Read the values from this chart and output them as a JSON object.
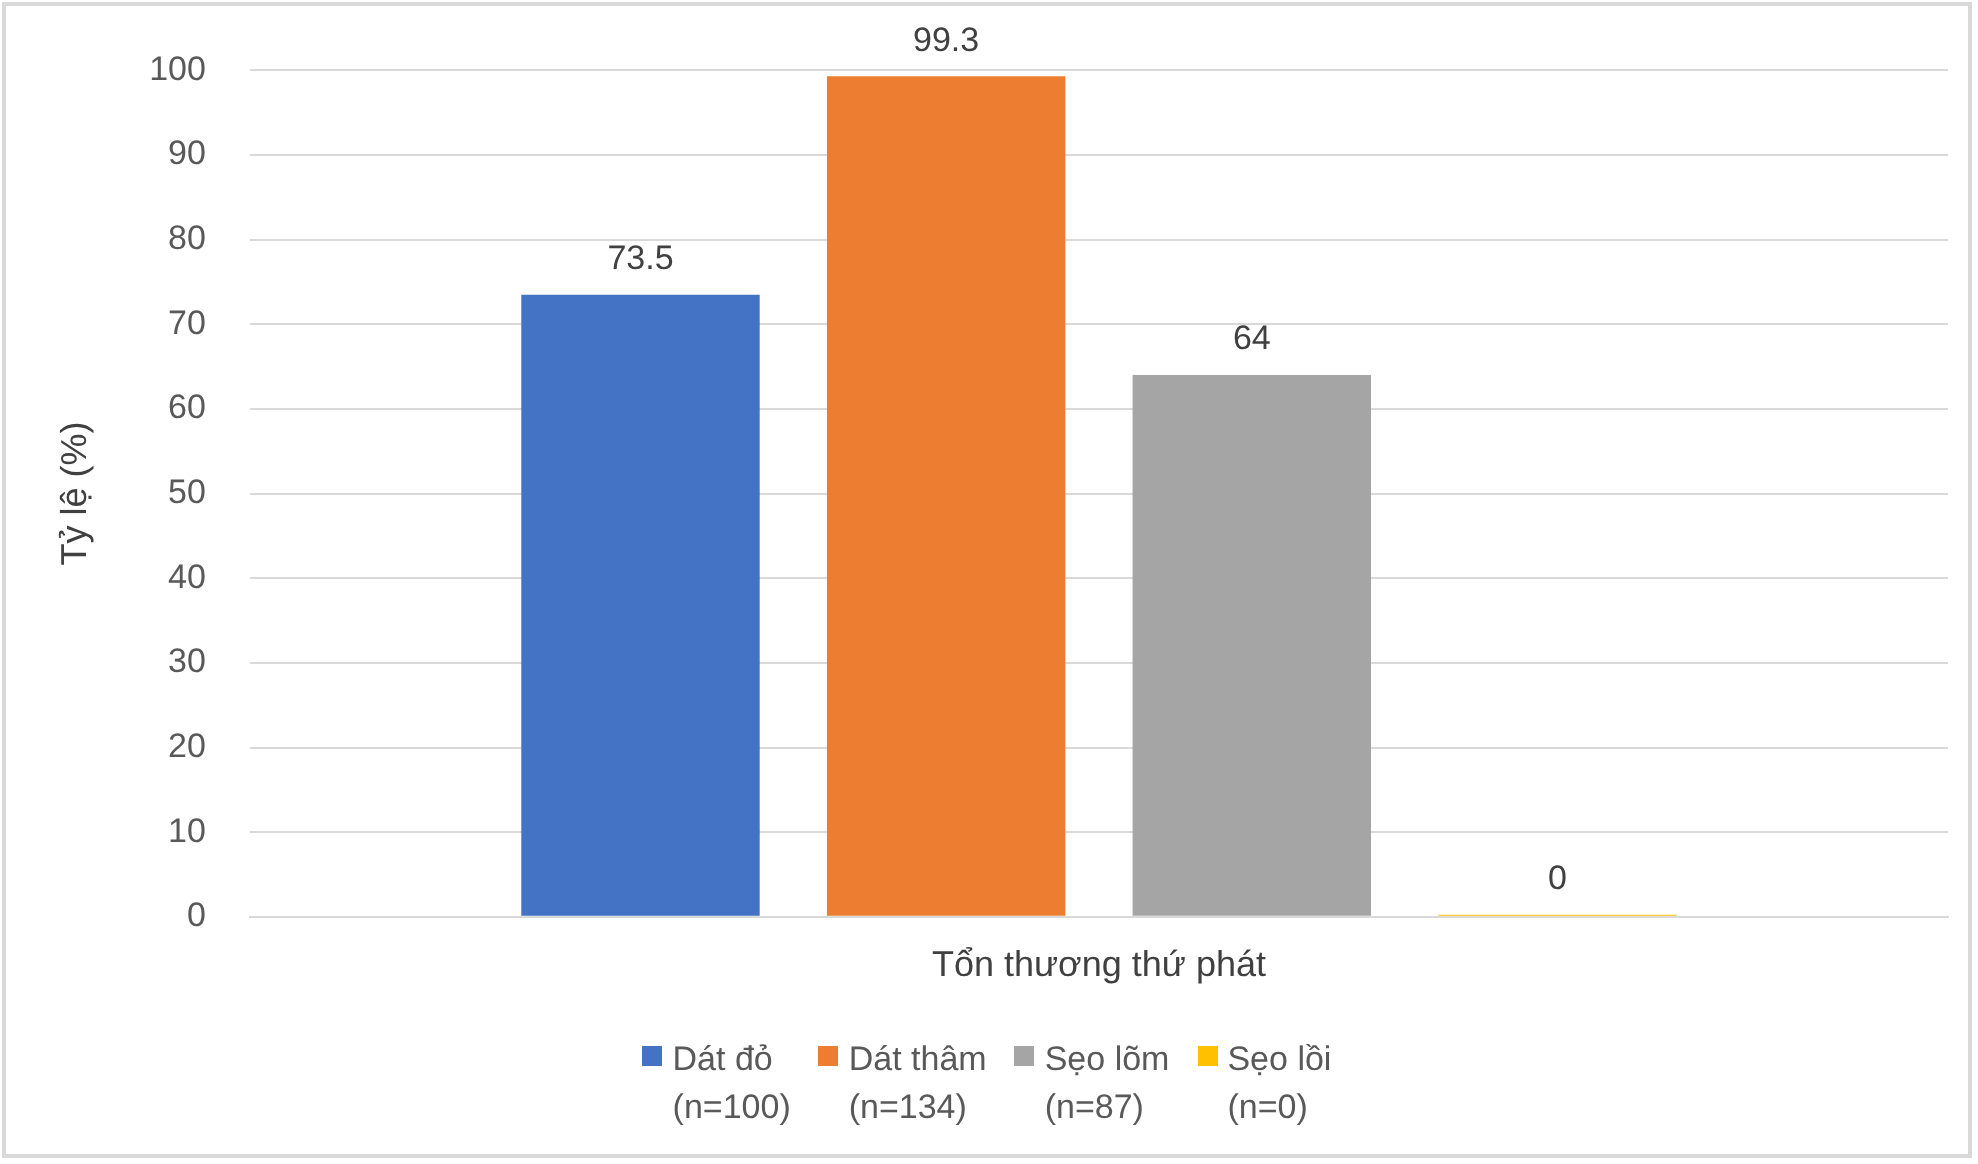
{
  "chart_data": {
    "type": "bar",
    "ylabel": "Tỷ lệ (%)",
    "categories": [
      "Tổn thương thứ phát"
    ],
    "series": [
      {
        "name": "Dát đỏ\n(n=100)",
        "color": "#4472c4",
        "values": [
          73.5
        ]
      },
      {
        "name": "Dát thâm\n(n=134)",
        "color": "#ed7d31",
        "values": [
          99.3
        ]
      },
      {
        "name": "Sẹo lõm\n(n=87)",
        "color": "#a5a5a5",
        "values": [
          64
        ]
      },
      {
        "name": "Sẹo lồi\n(n=0)",
        "color": "#ffc000",
        "values": [
          0
        ]
      }
    ],
    "ylim": [
      0,
      100
    ],
    "yticks": [
      0,
      10,
      20,
      30,
      40,
      50,
      60,
      70,
      80,
      90,
      100
    ],
    "grid": "y",
    "legend": "bottom",
    "data_labels": true
  }
}
